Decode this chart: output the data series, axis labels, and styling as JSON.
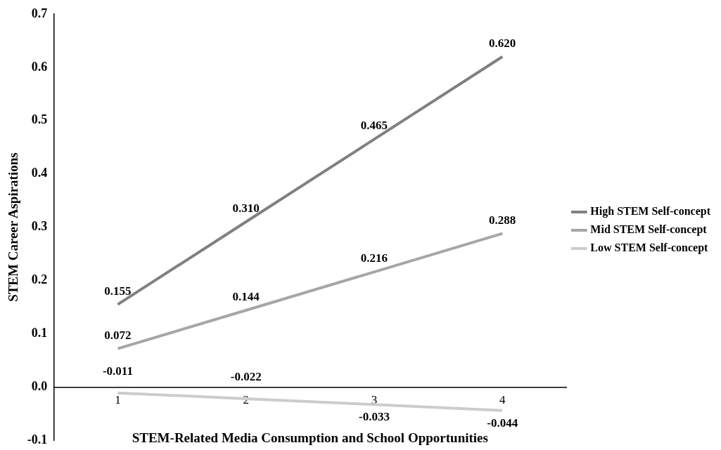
{
  "chart_data": {
    "type": "line",
    "xlabel": "STEM-Related Media Consumption and School Opportunities",
    "ylabel": "STEM Career Aspirations",
    "categories": [
      "1",
      "2",
      "3",
      "4"
    ],
    "series": [
      {
        "name": "High STEM Self-concept",
        "color": "#808080",
        "values": [
          0.155,
          0.31,
          0.465,
          0.62
        ],
        "value_labels": [
          "0.155",
          "0.310",
          "0.465",
          "0.620"
        ]
      },
      {
        "name": "Mid STEM Self-concept",
        "color": "#a6a6a6",
        "values": [
          0.072,
          0.144,
          0.216,
          0.288
        ],
        "value_labels": [
          "0.072",
          "0.144",
          "0.216",
          "0.288"
        ]
      },
      {
        "name": "Low STEM Self-concept",
        "color": "#cccccc",
        "values": [
          -0.011,
          -0.022,
          -0.033,
          -0.044
        ],
        "value_labels": [
          "-0.011",
          "-0.022",
          "-0.033",
          "-0.044"
        ]
      }
    ],
    "ylim": [
      -0.1,
      0.7
    ],
    "yticks": [
      {
        "value": -0.1,
        "label": "-0.1"
      },
      {
        "value": 0,
        "label": "0.0"
      },
      0.1,
      0.2,
      0.3,
      0.4,
      0.5,
      0.6,
      0.7
    ],
    "grid": false,
    "legend": "right",
    "marker": "none",
    "line_style": "solid"
  }
}
